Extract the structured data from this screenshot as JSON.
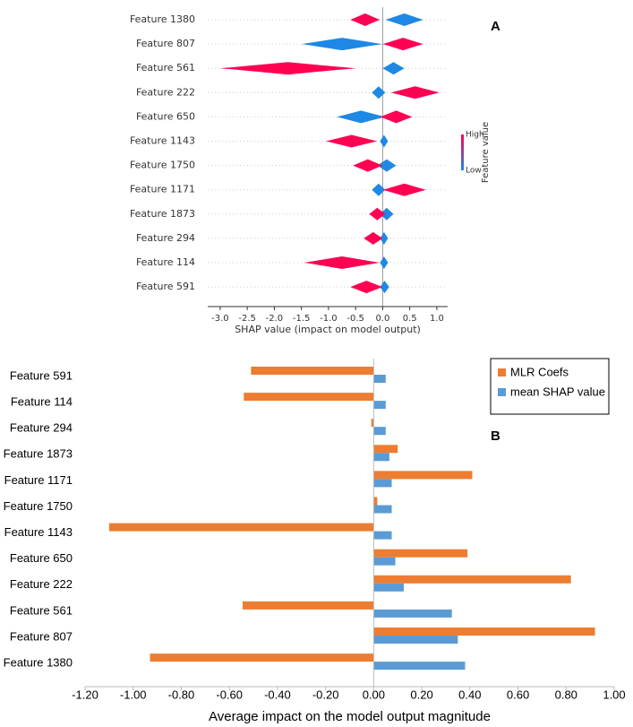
{
  "chart_data": [
    {
      "type": "beeswarm",
      "panel_label": "A",
      "xlabel": "SHAP value (impact on model output)",
      "colorbar_label": "Feature value",
      "categories": [
        "Feature 1380",
        "Feature 807",
        "Feature 561",
        "Feature 222",
        "Feature 650",
        "Feature 1143",
        "Feature 1750",
        "Feature 1171",
        "Feature 1873",
        "Feature 294",
        "Feature 114",
        "Feature 591"
      ],
      "series": [
        {
          "name": "High",
          "color": "#ff0052",
          "min": [
            -0.6,
            0.0,
            -3.0,
            0.15,
            -0.05,
            -1.05,
            -0.55,
            0.0,
            -0.25,
            -0.35,
            -1.45,
            -0.6
          ],
          "max": [
            -0.05,
            0.75,
            -0.5,
            1.05,
            0.55,
            -0.1,
            0.0,
            0.8,
            0.05,
            0.0,
            -0.05,
            0.0
          ]
        },
        {
          "name": "Low",
          "color": "#1e88e5",
          "min": [
            0.05,
            -1.5,
            0.0,
            -0.2,
            -0.85,
            -0.05,
            -0.1,
            -0.2,
            -0.05,
            -0.05,
            -0.05,
            -0.05
          ],
          "max": [
            0.75,
            0.0,
            0.4,
            0.05,
            0.05,
            0.1,
            0.25,
            0.05,
            0.2,
            0.1,
            0.1,
            0.12
          ]
        }
      ],
      "xlim": [
        -3.23,
        1.2
      ],
      "xticks": [
        {
          "value": -3,
          "label": "-3.0"
        },
        {
          "value": -2.5,
          "label": "-2.5"
        },
        {
          "value": -2,
          "label": "-2.0"
        },
        {
          "value": -1.5,
          "label": "-1.5"
        },
        {
          "value": -1,
          "label": "-1.0"
        },
        {
          "value": -0.5,
          "label": "-0.5"
        },
        {
          "value": 0,
          "label": "0.0"
        },
        {
          "value": 0.5,
          "label": "0.5"
        },
        {
          "value": 1,
          "label": "1.0"
        }
      ]
    },
    {
      "type": "barh",
      "panel_label": "B",
      "xlabel": "Average impact on the model output magnitude",
      "categories": [
        "Feature 591",
        "Feature 114",
        "Feature 294",
        "Feature 1873",
        "Feature 1171",
        "Feature 1750",
        "Feature 1143",
        "Feature 650",
        "Feature 222",
        "Feature 561",
        "Feature 807",
        "Feature 1380"
      ],
      "series": [
        {
          "name": "MLR Coefs",
          "color": "#ed7d31",
          "values": [
            -0.51,
            -0.54,
            -0.01,
            0.1,
            0.41,
            0.015,
            -1.1,
            0.39,
            0.82,
            -0.545,
            0.92,
            -0.93
          ]
        },
        {
          "name": "mean SHAP value",
          "color": "#5b9bd5",
          "values": [
            0.05,
            0.05,
            0.05,
            0.065,
            0.075,
            0.075,
            0.075,
            0.09,
            0.125,
            0.325,
            0.35,
            0.38
          ]
        }
      ],
      "xlim": [
        -1.2,
        1.0
      ],
      "xticks": [
        {
          "value": -1.2,
          "label": "-1.20"
        },
        {
          "value": -1,
          "label": "-1.00"
        },
        {
          "value": -0.8,
          "label": "-0.80"
        },
        {
          "value": -0.6,
          "label": "-0.60"
        },
        {
          "value": -0.4,
          "label": "-0.40"
        },
        {
          "value": -0.2,
          "label": "-0.20"
        },
        {
          "value": 0,
          "label": "0.00"
        },
        {
          "value": 0.2,
          "label": "0.20"
        },
        {
          "value": 0.4,
          "label": "0.40"
        },
        {
          "value": 0.6,
          "label": "0.60"
        },
        {
          "value": 0.8,
          "label": "0.80"
        },
        {
          "value": 1,
          "label": "1.00"
        }
      ],
      "legend": "upper right"
    }
  ]
}
